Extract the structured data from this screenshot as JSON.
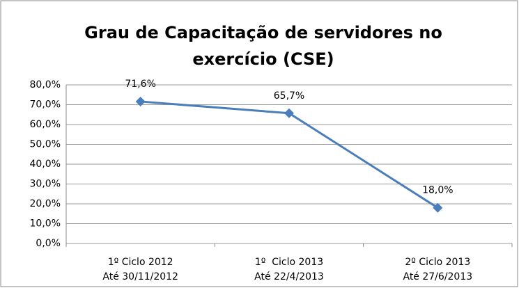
{
  "chart_data": {
    "type": "line",
    "title": [
      "Grau de Capacitação de servidores no",
      "exercício (CSE)"
    ],
    "categories": [
      [
        "1º Ciclo 2012",
        "Até 30/11/2012"
      ],
      [
        "1º  Ciclo 2013",
        "Até 22/4/2013"
      ],
      [
        "2º Ciclo 2013",
        "Até 27/6/2013"
      ]
    ],
    "values": [
      71.6,
      65.7,
      18.0
    ],
    "value_labels": [
      "71,6%",
      "65,7%",
      "18,0%"
    ],
    "color": "#4a7ebb",
    "ylim": [
      0,
      80
    ],
    "yticks": [
      {
        "value": 0,
        "label": "0,0%"
      },
      {
        "value": 10,
        "label": "10,0%"
      },
      {
        "value": 20,
        "label": "20,0%"
      },
      {
        "value": 30,
        "label": "30,0%"
      },
      {
        "value": 40,
        "label": "40,0%"
      },
      {
        "value": 50,
        "label": "50,0%"
      },
      {
        "value": 60,
        "label": "60,0%"
      },
      {
        "value": 70,
        "label": "70,0%"
      },
      {
        "value": 80,
        "label": "80,0%"
      }
    ],
    "grid": true
  }
}
